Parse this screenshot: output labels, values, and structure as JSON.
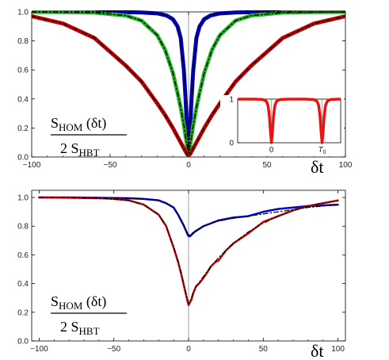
{
  "chart_data": [
    {
      "type": "line",
      "xlim": [
        -100,
        100
      ],
      "ylim": [
        0,
        1
      ],
      "xticks": [
        -100,
        -50,
        0,
        50,
        100
      ],
      "yticks": [
        0.0,
        0.2,
        0.4,
        0.6,
        0.8,
        1.0
      ],
      "xtick_labels": [
        "−100",
        "−50",
        "0",
        "50",
        "100"
      ],
      "ytick_labels": [
        "0.0",
        "0.2",
        "0.4",
        "0.6",
        "0.8",
        "1.0"
      ],
      "xlabel": "δt",
      "ylabel_num": "S",
      "ylabel_num_sub": "HOM",
      "ylabel_num_arg": " (δt)",
      "ylabel_den": "2 S",
      "ylabel_den_sub": "HBT",
      "grid": false,
      "series": [
        {
          "color": "#0000cc",
          "width": 5,
          "x": [
            -100,
            -60,
            -40,
            -30,
            -20,
            -14,
            -10,
            -7,
            -5,
            -3,
            -2,
            -1,
            0,
            1,
            2,
            3,
            5,
            7,
            10,
            14,
            20,
            30,
            40,
            60,
            100
          ],
          "y": [
            1.0,
            1.0,
            0.998,
            0.996,
            0.99,
            0.975,
            0.95,
            0.9,
            0.82,
            0.6,
            0.42,
            0.2,
            0.05,
            0.2,
            0.42,
            0.6,
            0.82,
            0.9,
            0.95,
            0.975,
            0.99,
            0.996,
            0.998,
            1.0,
            1.0
          ]
        },
        {
          "color": "#22bb22",
          "width": 5,
          "x": [
            -100,
            -80,
            -60,
            -40,
            -30,
            -20,
            -15,
            -10,
            -7,
            -5,
            -3,
            -1,
            0,
            1,
            3,
            5,
            7,
            10,
            15,
            20,
            30,
            40,
            60,
            80,
            100
          ],
          "y": [
            0.999,
            0.998,
            0.995,
            0.975,
            0.94,
            0.84,
            0.74,
            0.58,
            0.44,
            0.34,
            0.22,
            0.08,
            0.03,
            0.08,
            0.22,
            0.34,
            0.44,
            0.58,
            0.74,
            0.84,
            0.94,
            0.975,
            0.995,
            0.998,
            0.999
          ]
        },
        {
          "color": "#cc0000",
          "width": 5,
          "x": [
            -100,
            -80,
            -60,
            -40,
            -30,
            -20,
            -15,
            -10,
            -7,
            -5,
            -3,
            -1,
            0,
            1,
            3,
            5,
            7,
            10,
            15,
            20,
            30,
            40,
            60,
            80,
            100
          ],
          "y": [
            0.97,
            0.92,
            0.82,
            0.63,
            0.52,
            0.37,
            0.29,
            0.2,
            0.14,
            0.1,
            0.06,
            0.02,
            0.01,
            0.02,
            0.06,
            0.1,
            0.14,
            0.2,
            0.29,
            0.37,
            0.52,
            0.63,
            0.82,
            0.92,
            0.97
          ]
        },
        {
          "color": "#000000",
          "width": 1.5,
          "dash": "6,3,1.5,3",
          "x": [
            -100,
            -60,
            -40,
            -30,
            -20,
            -14,
            -10,
            -7,
            -5,
            -3,
            -2,
            -1,
            0,
            1,
            2,
            3,
            5,
            7,
            10,
            14,
            20,
            30,
            40,
            60,
            100
          ],
          "y": [
            1.0,
            1.0,
            0.998,
            0.996,
            0.99,
            0.975,
            0.95,
            0.9,
            0.82,
            0.6,
            0.42,
            0.2,
            0.05,
            0.2,
            0.42,
            0.6,
            0.82,
            0.9,
            0.95,
            0.975,
            0.99,
            0.996,
            0.998,
            1.0,
            1.0
          ]
        },
        {
          "color": "#000000",
          "width": 1.5,
          "dash": "6,3,1.5,3",
          "x": [
            -100,
            -80,
            -60,
            -40,
            -30,
            -20,
            -15,
            -10,
            -7,
            -5,
            -3,
            -1,
            0,
            1,
            3,
            5,
            7,
            10,
            15,
            20,
            30,
            40,
            60,
            80,
            100
          ],
          "y": [
            0.999,
            0.998,
            0.995,
            0.975,
            0.94,
            0.84,
            0.74,
            0.58,
            0.44,
            0.34,
            0.22,
            0.08,
            0.03,
            0.08,
            0.22,
            0.34,
            0.44,
            0.58,
            0.74,
            0.84,
            0.94,
            0.975,
            0.995,
            0.998,
            0.999
          ]
        },
        {
          "color": "#000000",
          "width": 1.5,
          "dash": "6,3,1.5,3",
          "x": [
            -100,
            -80,
            -60,
            -40,
            -30,
            -20,
            -15,
            -10,
            -7,
            -5,
            -3,
            -1,
            0,
            1,
            3,
            5,
            7,
            10,
            15,
            20,
            30,
            40,
            60,
            80,
            100
          ],
          "y": [
            0.97,
            0.92,
            0.82,
            0.63,
            0.52,
            0.37,
            0.29,
            0.2,
            0.14,
            0.1,
            0.06,
            0.02,
            0.01,
            0.02,
            0.06,
            0.1,
            0.14,
            0.2,
            0.29,
            0.37,
            0.52,
            0.63,
            0.82,
            0.92,
            0.97
          ]
        }
      ],
      "inset": {
        "type": "line",
        "xlim": [
          -1,
          2.05
        ],
        "ylim": [
          0,
          1
        ],
        "yticks": [
          0,
          1
        ],
        "ytick_labels": [
          "0",
          "1"
        ],
        "xticks": [
          0,
          1.5
        ],
        "xtick_labels": [
          "0",
          "T"
        ],
        "xtick_sub": "0",
        "series": [
          {
            "color": "#ee1111",
            "width": 3.5,
            "x": [
              -1,
              -0.5,
              -0.25,
              -0.15,
              -0.1,
              -0.06,
              -0.03,
              0,
              0.03,
              0.06,
              0.1,
              0.15,
              0.25,
              0.5,
              0.75,
              1.0,
              1.25,
              1.35,
              1.4,
              1.44,
              1.47,
              1.5,
              1.53,
              1.56,
              1.6,
              1.65,
              1.75,
              2.0,
              2.05
            ],
            "y": [
              1,
              1,
              0.99,
              0.95,
              0.85,
              0.6,
              0.25,
              0.0,
              0.25,
              0.6,
              0.85,
              0.95,
              0.99,
              1,
              1,
              1,
              0.99,
              0.95,
              0.85,
              0.6,
              0.25,
              0.0,
              0.25,
              0.6,
              0.85,
              0.95,
              0.99,
              1,
              1
            ]
          }
        ]
      }
    },
    {
      "type": "line",
      "xlim": [
        -105,
        105
      ],
      "ylim": [
        0,
        1.05
      ],
      "xticks": [
        -100,
        -50,
        0,
        50,
        100
      ],
      "yticks": [
        0.0,
        0.2,
        0.4,
        0.6,
        0.8,
        1.0
      ],
      "xtick_labels": [
        "−100",
        "−50",
        "0",
        "50",
        "100"
      ],
      "ytick_labels": [
        "0.0",
        "0.2",
        "0.4",
        "0.6",
        "0.8",
        "1.0"
      ],
      "xlabel": "δt",
      "ylabel_num": "S",
      "ylabel_num_sub": "HOM",
      "ylabel_num_arg": " (δt)",
      "ylabel_den": "2 S",
      "ylabel_den_sub": "HBT",
      "grid": false,
      "series": [
        {
          "color": "#0000cc",
          "width": 2.5,
          "x": [
            -100,
            -80,
            -60,
            -40,
            -30,
            -20,
            -15,
            -10,
            -7,
            -5,
            -3,
            -1,
            0,
            1,
            2,
            4,
            7,
            10,
            15,
            20,
            30,
            40,
            50,
            60,
            70,
            80,
            90,
            100
          ],
          "y": [
            1.0,
            1.0,
            0.998,
            0.995,
            0.99,
            0.98,
            0.96,
            0.93,
            0.88,
            0.84,
            0.8,
            0.75,
            0.73,
            0.73,
            0.74,
            0.76,
            0.78,
            0.8,
            0.82,
            0.84,
            0.86,
            0.87,
            0.9,
            0.92,
            0.93,
            0.94,
            0.945,
            0.95
          ]
        },
        {
          "color": "#cc0000",
          "width": 2.5,
          "x": [
            -100,
            -80,
            -60,
            -50,
            -40,
            -30,
            -20,
            -15,
            -10,
            -7,
            -5,
            -3,
            -1,
            0,
            1,
            2,
            3,
            5,
            7,
            10,
            12,
            15,
            18,
            20,
            25,
            30,
            40,
            50,
            60,
            70,
            80,
            90,
            100
          ],
          "y": [
            1.0,
            0.998,
            0.995,
            0.99,
            0.98,
            0.95,
            0.88,
            0.8,
            0.65,
            0.55,
            0.47,
            0.38,
            0.29,
            0.25,
            0.27,
            0.29,
            0.33,
            0.38,
            0.4,
            0.44,
            0.47,
            0.52,
            0.55,
            0.56,
            0.63,
            0.68,
            0.75,
            0.83,
            0.87,
            0.91,
            0.94,
            0.96,
            0.98
          ]
        },
        {
          "color": "#000000",
          "width": 1.2,
          "dash": "6,3,1.5,3",
          "x": [
            -100,
            -80,
            -60,
            -40,
            -30,
            -20,
            -15,
            -10,
            -7,
            -5,
            -3,
            -1,
            0,
            1,
            3,
            5,
            10,
            15,
            20,
            30,
            40,
            50,
            60,
            70,
            80,
            90,
            100
          ],
          "y": [
            1.0,
            1.0,
            0.998,
            0.995,
            0.99,
            0.98,
            0.96,
            0.93,
            0.88,
            0.84,
            0.8,
            0.76,
            0.74,
            0.74,
            0.755,
            0.77,
            0.8,
            0.82,
            0.835,
            0.855,
            0.87,
            0.885,
            0.9,
            0.915,
            0.93,
            0.94,
            0.95
          ]
        },
        {
          "color": "#000000",
          "width": 1.2,
          "dash": "6,3,1.5,3",
          "x": [
            -100,
            -80,
            -60,
            -50,
            -40,
            -30,
            -20,
            -15,
            -10,
            -7,
            -5,
            -3,
            -1,
            0,
            1,
            3,
            5,
            10,
            15,
            20,
            30,
            40,
            50,
            60,
            70,
            80,
            90,
            100
          ],
          "y": [
            1.0,
            0.998,
            0.995,
            0.99,
            0.98,
            0.95,
            0.88,
            0.8,
            0.66,
            0.56,
            0.48,
            0.39,
            0.3,
            0.26,
            0.28,
            0.33,
            0.38,
            0.45,
            0.52,
            0.58,
            0.68,
            0.76,
            0.82,
            0.87,
            0.91,
            0.94,
            0.96,
            0.975
          ]
        }
      ]
    }
  ]
}
